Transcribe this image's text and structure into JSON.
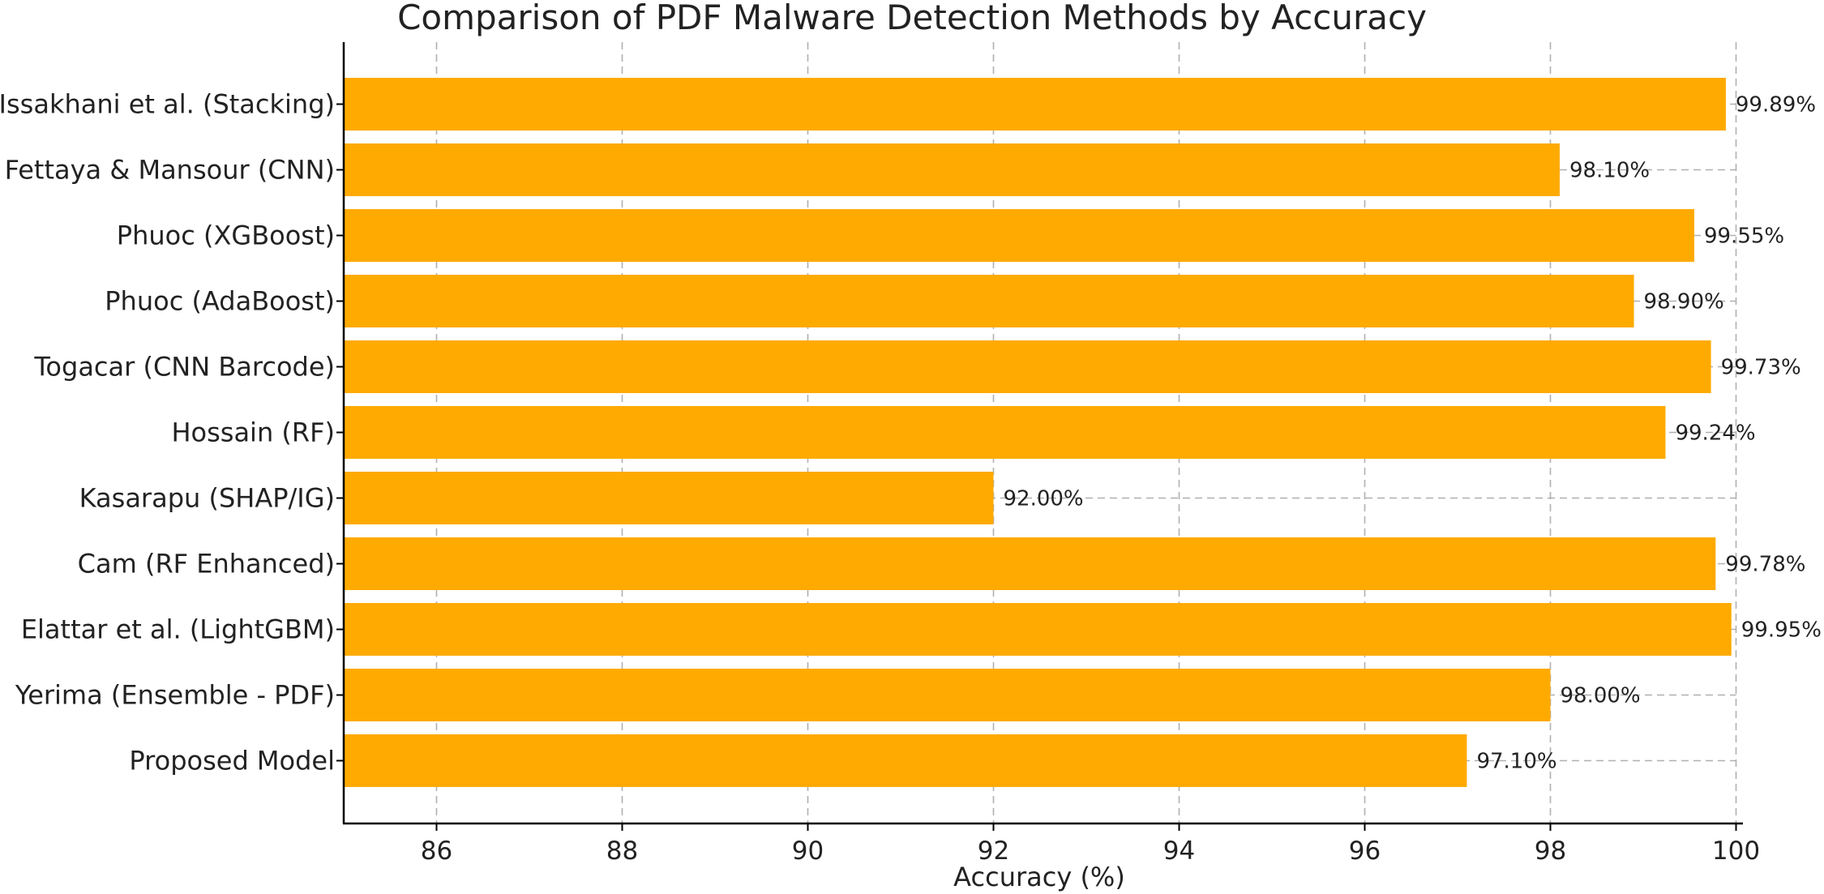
{
  "chart_data": {
    "type": "bar",
    "orientation": "horizontal",
    "title": "Comparison of PDF Malware Detection Methods by Accuracy",
    "xlabel": "Accuracy (%)",
    "ylabel": "",
    "xlim": [
      85,
      100
    ],
    "xticks": [
      86,
      88,
      90,
      92,
      94,
      96,
      98,
      100
    ],
    "grid": true,
    "bar_color": "#FFAA00",
    "categories": [
      "Issakhani et al. (Stacking)",
      "Fettaya & Mansour (CNN)",
      "Phuoc (XGBoost)",
      "Phuoc (AdaBoost)",
      "Togacar (CNN Barcode)",
      "Hossain (RF)",
      "Kasarapu (SHAP/IG)",
      "Cam (RF Enhanced)",
      "Elattar et al. (LightGBM)",
      "Yerima (Ensemble - PDF)",
      "Proposed Model"
    ],
    "values": [
      99.89,
      98.1,
      99.55,
      98.9,
      99.73,
      99.24,
      92.0,
      99.78,
      99.95,
      98.0,
      97.1
    ],
    "data_labels": [
      "99.89%",
      "98.10%",
      "99.55%",
      "98.90%",
      "99.73%",
      "99.24%",
      "92.00%",
      "99.78%",
      "99.95%",
      "98.00%",
      "97.10%"
    ]
  }
}
